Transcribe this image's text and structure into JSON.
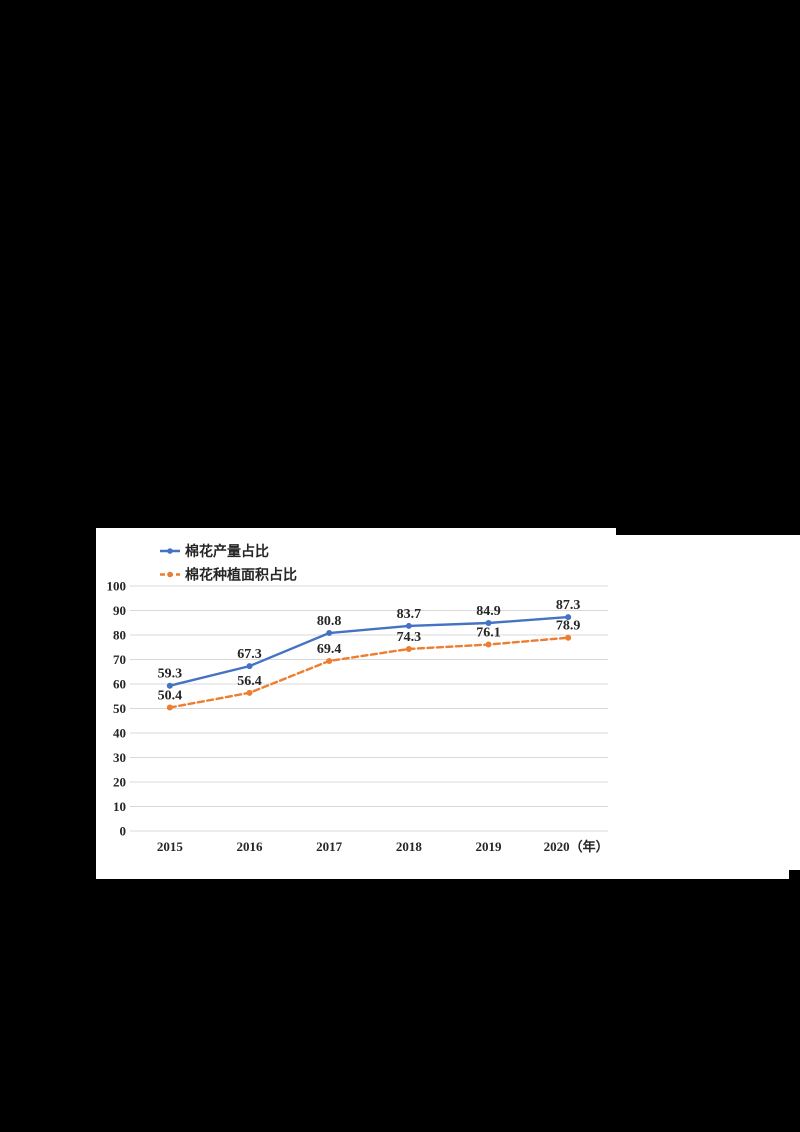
{
  "page": {
    "background_color": "#000000",
    "panel_color": "#ffffff"
  },
  "chart_data": {
    "type": "line",
    "title": "",
    "categories": [
      "2015",
      "2016",
      "2017",
      "2018",
      "2019",
      "2020"
    ],
    "x_tick_labels": [
      "2015",
      "2016",
      "2017",
      "2018",
      "2019",
      "2020（年）"
    ],
    "series": [
      {
        "name": "棉花产量占比",
        "color": "#4472C4",
        "line_style": "solid",
        "values": [
          59.3,
          67.3,
          80.8,
          83.7,
          84.9,
          87.3
        ],
        "labels": [
          "59.3",
          "67.3",
          "80.8",
          "83.7",
          "84.9",
          "87.3"
        ]
      },
      {
        "name": "棉花种植面积占比",
        "color": "#ED7D31",
        "line_style": "dashed",
        "values": [
          50.4,
          56.4,
          69.4,
          74.3,
          76.1,
          78.9
        ],
        "labels": [
          "50.4",
          "56.4",
          "69.4",
          "74.3",
          "76.1",
          "78.9"
        ]
      }
    ],
    "ylim": [
      0,
      100
    ],
    "y_ticks": [
      0,
      10,
      20,
      30,
      40,
      50,
      60,
      70,
      80,
      90,
      100
    ],
    "grid": true,
    "legend_position": "top-left",
    "gridline_color": "#d9d9d9",
    "text_color": "#262626"
  }
}
